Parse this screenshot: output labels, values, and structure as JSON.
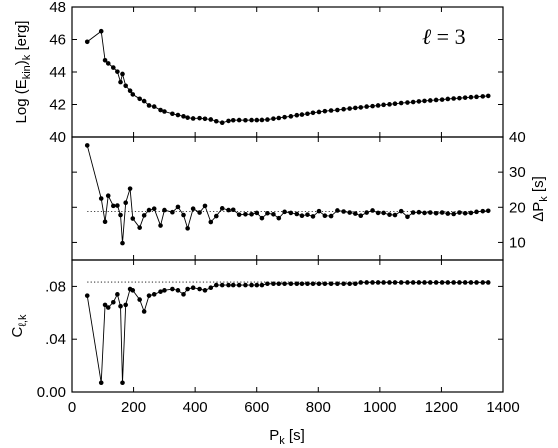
{
  "chart_data": [
    {
      "type": "line",
      "panel": "top",
      "ylabel_main": "Log (E",
      "ylabel_sub": "kin",
      "ylabel_close": ")",
      "ylabel_sub2": "k",
      "ylabel_unit": " [erg]",
      "annotation_symbol": "ℓ",
      "annotation_text": " = 3",
      "ylim": [
        40,
        48
      ],
      "yticks": [
        40,
        42,
        44,
        46,
        48
      ],
      "ytick_labels": [
        "40",
        "42",
        "44",
        "46",
        "48"
      ],
      "x": [
        49.5,
        94.9,
        107.4,
        117.7,
        134.2,
        147.4,
        157.6,
        164.0,
        174.4,
        188.7,
        197.4,
        219.8,
        234.4,
        250.2,
        267.0,
        287.6,
        300.3,
        326.1,
        344.2,
        362.2,
        375.6,
        393.5,
        414.4,
        432.0,
        450.8,
        468.7,
        488.0,
        508.4,
        523.7,
        543.0,
        563.4,
        583.3,
        600.3,
        616.9,
        634.8,
        654.2,
        671.7,
        690.6,
        710.9,
        730.2,
        746.9,
        764.9,
        782.8,
        802.3,
        821.4,
        841.6,
        862.1,
        882.3,
        902.0,
        920.3,
        938.0,
        957.2,
        976.3,
        994.3,
        1012.2,
        1031.4,
        1049.2,
        1069.3,
        1089.7,
        1108.2,
        1126.8,
        1145.0,
        1163.8,
        1182.8,
        1202.2,
        1220.8,
        1239.8,
        1258.5,
        1277.1,
        1295.9,
        1314.0,
        1334.3,
        1352.1
      ],
      "values": [
        45.86,
        46.51,
        44.72,
        44.53,
        44.27,
        44.02,
        43.38,
        43.88,
        43.15,
        42.85,
        42.62,
        42.35,
        42.21,
        41.94,
        41.87,
        41.66,
        41.57,
        41.43,
        41.35,
        41.27,
        41.19,
        41.14,
        41.16,
        41.12,
        41.08,
        40.97,
        40.88,
        40.99,
        41.03,
        41.04,
        41.03,
        41.04,
        41.04,
        41.05,
        41.07,
        41.13,
        41.17,
        41.22,
        41.27,
        41.34,
        41.38,
        41.43,
        41.49,
        41.54,
        41.59,
        41.63,
        41.66,
        41.71,
        41.75,
        41.79,
        41.82,
        41.87,
        41.9,
        41.94,
        41.98,
        42.01,
        42.05,
        42.09,
        42.12,
        42.15,
        42.19,
        42.22,
        42.25,
        42.28,
        42.3,
        42.34,
        42.37,
        42.39,
        42.42,
        42.45,
        42.47,
        42.5,
        42.53
      ]
    },
    {
      "type": "line",
      "panel": "middle",
      "ylabel_main": "ΔP",
      "ylabel_sub": "k",
      "ylabel_unit": " [s]",
      "ylim": [
        5,
        40
      ],
      "yticks": [
        10,
        20,
        30,
        40
      ],
      "ytick_labels": [
        "10",
        "20",
        "30",
        "40"
      ],
      "reference_line": 18.8,
      "x": [
        49.5,
        94.9,
        107.4,
        117.7,
        134.2,
        147.4,
        157.6,
        164.0,
        174.4,
        188.7,
        197.4,
        219.8,
        234.4,
        250.2,
        267.0,
        287.6,
        300.3,
        326.1,
        344.2,
        362.2,
        375.6,
        393.5,
        414.4,
        432.0,
        450.8,
        468.7,
        488.0,
        508.4,
        523.7,
        543.0,
        563.4,
        583.3,
        600.3,
        616.9,
        634.8,
        654.2,
        671.7,
        690.6,
        710.9,
        730.2,
        746.9,
        764.9,
        782.8,
        802.3,
        821.4,
        841.6,
        862.1,
        882.3,
        902.0,
        920.3,
        938.0,
        957.2,
        976.3,
        994.3,
        1012.2,
        1031.4,
        1049.2,
        1069.3,
        1089.7,
        1108.2,
        1126.8,
        1145.0,
        1163.8,
        1182.8,
        1202.2,
        1220.8,
        1239.8,
        1258.5,
        1277.1,
        1295.9,
        1314.0,
        1334.3,
        1352.1
      ],
      "values": [
        37.6,
        22.5,
        15.9,
        23.3,
        20.4,
        20.5,
        17.8,
        9.8,
        21.3,
        25.3,
        16.8,
        14.2,
        17.7,
        19.2,
        19.6,
        14.8,
        19.2,
        18.6,
        20.1,
        17.8,
        14.0,
        19.6,
        18.5,
        20.4,
        15.8,
        17.5,
        19.7,
        19.2,
        19.3,
        17.9,
        18.0,
        18.0,
        18.4,
        16.9,
        18.3,
        18.0,
        16.9,
        18.7,
        18.4,
        18.1,
        17.6,
        17.9,
        17.4,
        18.9,
        17.6,
        17.5,
        19.1,
        18.8,
        18.5,
        18.2,
        17.6,
        18.5,
        19.1,
        18.4,
        18.4,
        17.9,
        17.8,
        18.9,
        17.3,
        18.5,
        18.6,
        18.4,
        18.5,
        18.3,
        18.5,
        18.2,
        18.1,
        18.5,
        18.3,
        18.4,
        18.7,
        18.9,
        19.0
      ]
    },
    {
      "type": "line",
      "panel": "bottom",
      "xlabel_main": "P",
      "xlabel_sub": "k",
      "xlabel_unit": " [s]",
      "ylabel_main": "C",
      "ylabel_sub": "ℓ,k",
      "xlim": [
        0,
        1400
      ],
      "xticks": [
        0,
        200,
        400,
        600,
        800,
        1000,
        1200,
        1400
      ],
      "xtick_labels": [
        "0",
        "200",
        "400",
        "600",
        "800",
        "1000",
        "1200",
        "1400"
      ],
      "ylim": [
        0,
        0.1
      ],
      "yticks": [
        0,
        0.04,
        0.08
      ],
      "ytick_labels": [
        "0.00",
        ".04",
        ".08"
      ],
      "reference_line": 0.0833,
      "x": [
        49.5,
        94.9,
        107.4,
        117.7,
        134.2,
        147.4,
        157.6,
        164.0,
        174.4,
        188.7,
        197.4,
        219.8,
        234.4,
        250.2,
        267.0,
        287.6,
        300.3,
        326.1,
        344.2,
        362.2,
        375.6,
        393.5,
        414.4,
        432.0,
        450.8,
        468.7,
        488.0,
        508.4,
        523.7,
        543.0,
        563.4,
        583.3,
        600.3,
        616.9,
        634.8,
        654.2,
        671.7,
        690.6,
        710.9,
        730.2,
        746.9,
        764.9,
        782.8,
        802.3,
        821.4,
        841.6,
        862.1,
        882.3,
        902.0,
        920.3,
        938.0,
        957.2,
        976.3,
        994.3,
        1012.2,
        1031.4,
        1049.2,
        1069.3,
        1089.7,
        1108.2,
        1126.8,
        1145.0,
        1163.8,
        1182.8,
        1202.2,
        1220.8,
        1239.8,
        1258.5,
        1277.1,
        1295.9,
        1314.0,
        1334.3,
        1352.1
      ],
      "values": [
        0.073,
        0.007,
        0.066,
        0.064,
        0.068,
        0.074,
        0.065,
        0.007,
        0.066,
        0.078,
        0.077,
        0.07,
        0.061,
        0.073,
        0.074,
        0.076,
        0.077,
        0.078,
        0.077,
        0.074,
        0.078,
        0.079,
        0.078,
        0.077,
        0.079,
        0.081,
        0.081,
        0.081,
        0.081,
        0.081,
        0.081,
        0.081,
        0.081,
        0.081,
        0.082,
        0.082,
        0.082,
        0.082,
        0.082,
        0.082,
        0.082,
        0.082,
        0.082,
        0.082,
        0.082,
        0.082,
        0.082,
        0.082,
        0.082,
        0.082,
        0.083,
        0.083,
        0.083,
        0.083,
        0.083,
        0.083,
        0.083,
        0.083,
        0.083,
        0.083,
        0.083,
        0.083,
        0.083,
        0.083,
        0.083,
        0.083,
        0.083,
        0.083,
        0.083,
        0.083,
        0.083,
        0.083,
        0.083
      ]
    }
  ]
}
